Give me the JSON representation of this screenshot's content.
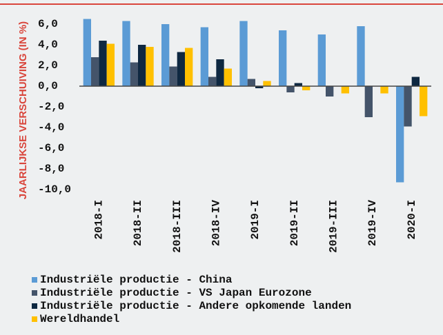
{
  "chart_data": {
    "type": "bar",
    "y_label": "JAARLIJKSE VERSCHUIVING (IN %)",
    "categories": [
      "2018-I",
      "2018-II",
      "2018-III",
      "2018-IV",
      "2019-I",
      "2019-II",
      "2019-III",
      "2019-IV",
      "2020-I"
    ],
    "series": [
      {
        "name": "Industriële productie - China",
        "color": "#5b9bd5",
        "values": [
          6.5,
          6.3,
          6.0,
          5.7,
          6.3,
          5.4,
          5.0,
          5.8,
          -9.3
        ]
      },
      {
        "name": "Industriële productie - VS Japan Eurozone",
        "color": "#44546a",
        "values": [
          2.8,
          2.3,
          1.9,
          0.9,
          0.7,
          -0.6,
          -1.0,
          -3.0,
          -3.9
        ]
      },
      {
        "name": "Industriële productie - Andere opkomende landen",
        "color": "#0e2841",
        "values": [
          4.4,
          4.0,
          3.3,
          2.6,
          -0.2,
          0.3,
          0.0,
          0.0,
          0.9
        ]
      },
      {
        "name": "Wereldhandel",
        "color": "#ffc000",
        "values": [
          4.1,
          3.8,
          3.7,
          1.7,
          0.5,
          -0.4,
          -0.7,
          -0.7,
          -2.9
        ]
      }
    ],
    "ylim": [
      -10,
      7
    ],
    "yticks": [
      {
        "value": 6,
        "label": "6,0"
      },
      {
        "value": 4,
        "label": "4,0"
      },
      {
        "value": 2,
        "label": "2,0"
      },
      {
        "value": 0,
        "label": "0,0"
      },
      {
        "value": -2,
        "label": "-2,0"
      },
      {
        "value": -4,
        "label": "-4,0"
      },
      {
        "value": -6,
        "label": "-6,0"
      },
      {
        "value": -8,
        "label": "-8,0"
      },
      {
        "value": -10,
        "label": "-10,0"
      }
    ],
    "legend": "bottom-left"
  }
}
